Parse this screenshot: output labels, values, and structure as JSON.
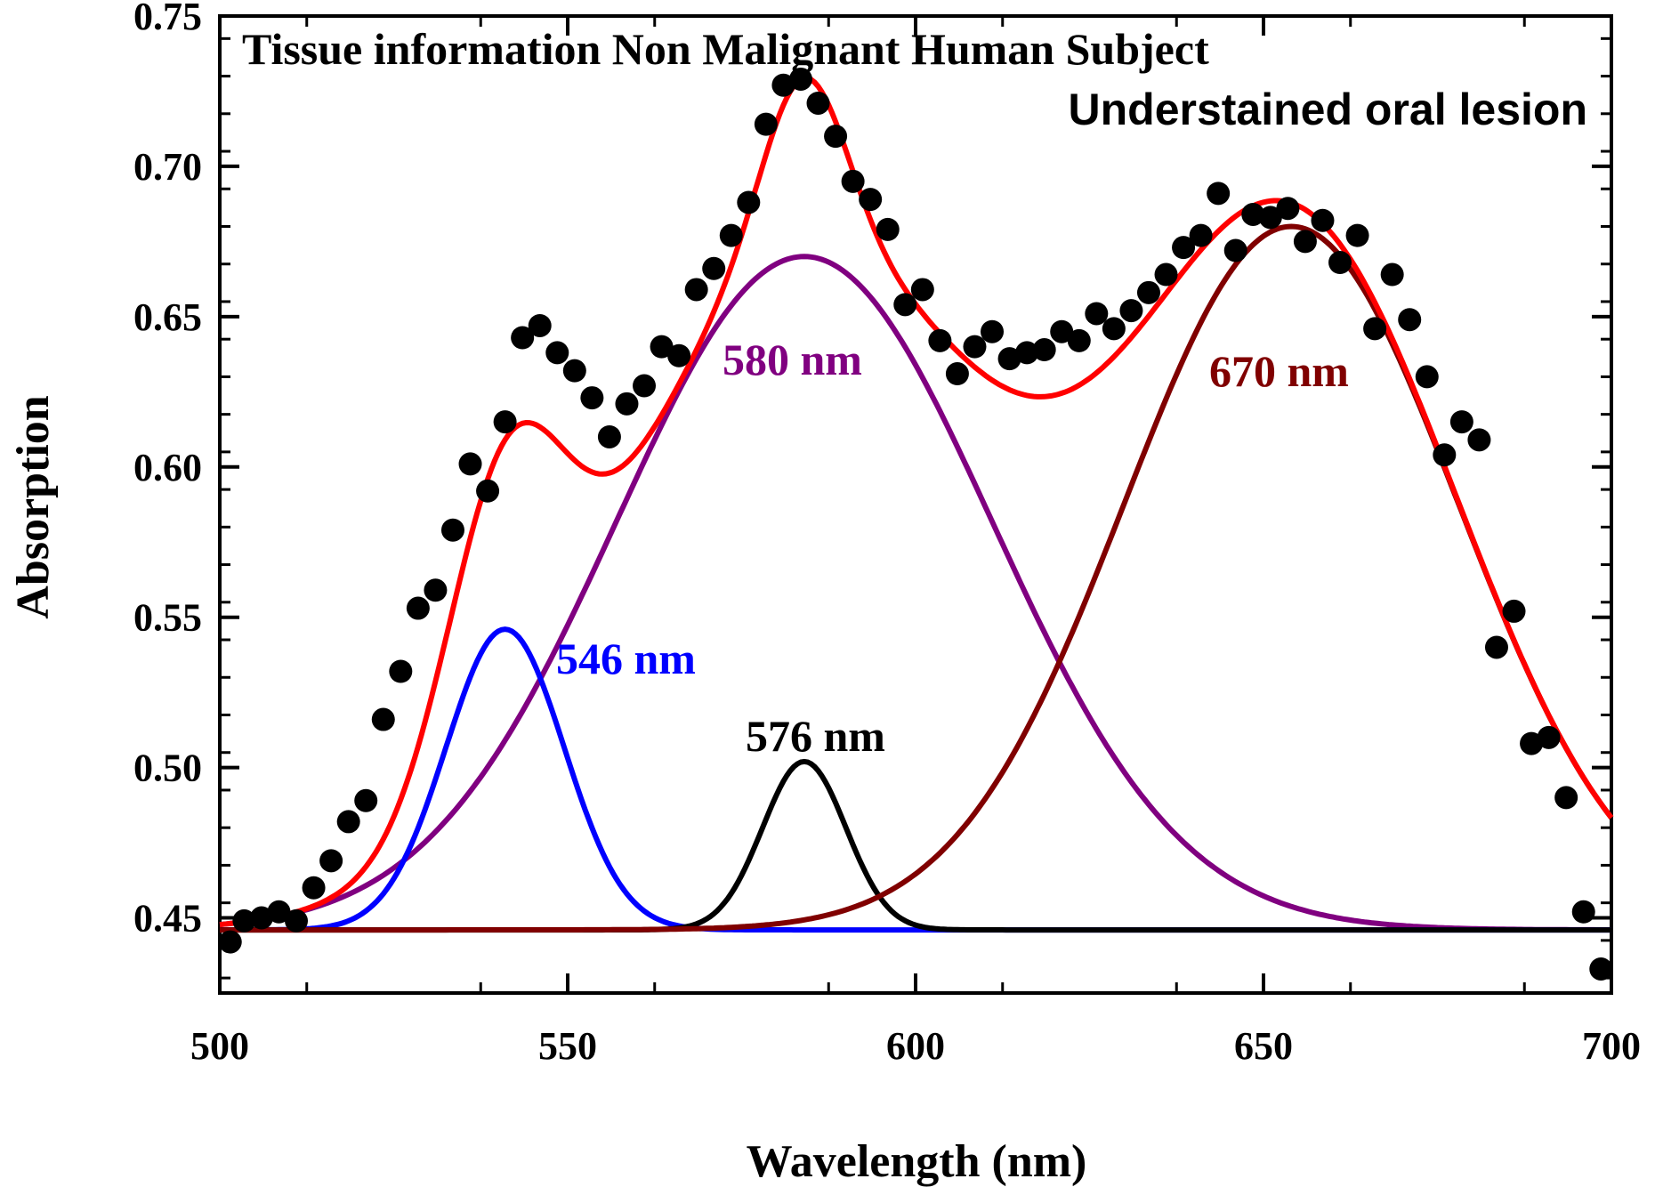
{
  "chart_data": {
    "type": "scatter",
    "title": "Tissue information Non Malignant Human Subject",
    "subtitle": "Understained oral lesion",
    "xlabel": "Wavelength (nm)",
    "ylabel": "Absorption",
    "xlim": [
      500,
      700
    ],
    "ylim": [
      0.425,
      0.75
    ],
    "xticks": [
      500,
      550,
      600,
      650,
      700
    ],
    "xtick_labels": [
      "500",
      "550",
      "600",
      "650",
      "700"
    ],
    "yticks": [
      0.45,
      0.5,
      0.55,
      0.6,
      0.65,
      0.7,
      0.75
    ],
    "ytick_labels": [
      "0.45",
      "0.50",
      "0.55",
      "0.60",
      "0.65",
      "0.70",
      "0.75"
    ],
    "baseline": 0.446,
    "colors": {
      "points": "#000000",
      "fit": "#ff0000",
      "peak_546": "#0000ff",
      "peak_576": "#000000",
      "peak_580": "#800080",
      "peak_670": "#800000"
    },
    "points": {
      "x": [
        501.5,
        503.5,
        506,
        508.5,
        511,
        513.5,
        516,
        518.5,
        521,
        523.5,
        526,
        528.5,
        531,
        533.5,
        536,
        538.5,
        541,
        543.5,
        546,
        548.5,
        551,
        553.5,
        556,
        558.5,
        561,
        563.5,
        566,
        568.5,
        571,
        573.5,
        576,
        578.5,
        581,
        583.5,
        586,
        588.5,
        591,
        593.5,
        596,
        598.5,
        601,
        603.5,
        606,
        608.5,
        611,
        613.5,
        616,
        618.5,
        621,
        623.5,
        626,
        628.5,
        631,
        633.5,
        636,
        638.5,
        641,
        643.5,
        646,
        648.5,
        651,
        653.5,
        656,
        658.5,
        661,
        663.5,
        666,
        668.5,
        671,
        673.5,
        676,
        678.5,
        681,
        683.5,
        686,
        688.5,
        691,
        693.5,
        696,
        698.5
      ],
      "y": [
        0.442,
        0.449,
        0.45,
        0.452,
        0.449,
        0.46,
        0.469,
        0.482,
        0.489,
        0.516,
        0.532,
        0.553,
        0.559,
        0.579,
        0.601,
        0.592,
        0.615,
        0.643,
        0.647,
        0.638,
        0.632,
        0.623,
        0.61,
        0.621,
        0.627,
        0.64,
        0.637,
        0.659,
        0.666,
        0.677,
        0.688,
        0.714,
        0.727,
        0.729,
        0.721,
        0.71,
        0.695,
        0.689,
        0.679,
        0.654,
        0.659,
        0.642,
        0.631,
        0.64,
        0.645,
        0.636,
        0.638,
        0.639,
        0.645,
        0.642,
        0.651,
        0.646,
        0.652,
        0.658,
        0.664,
        0.673,
        0.677,
        0.691,
        0.672,
        0.684,
        0.683,
        0.686,
        0.675,
        0.682,
        0.668,
        0.677,
        0.646,
        0.664,
        0.649,
        0.63,
        0.604,
        0.615,
        0.609,
        0.54,
        0.552,
        0.508,
        0.51,
        0.49,
        0.452,
        0.433
      ]
    },
    "peaks": [
      {
        "label": "546 nm",
        "center": 541,
        "amplitude": 0.1,
        "sigma": 8.5,
        "color": "#0000ff"
      },
      {
        "label": "576 nm",
        "center": 584,
        "amplitude": 0.056,
        "sigma": 6.0,
        "color": "#000000"
      },
      {
        "label": "580 nm",
        "center": 584,
        "amplitude": 0.224,
        "sigma": 27.0,
        "color": "#800080"
      },
      {
        "label": "670 nm",
        "center": 654,
        "amplitude": 0.234,
        "sigma": 24.0,
        "color": "#800000"
      }
    ]
  }
}
